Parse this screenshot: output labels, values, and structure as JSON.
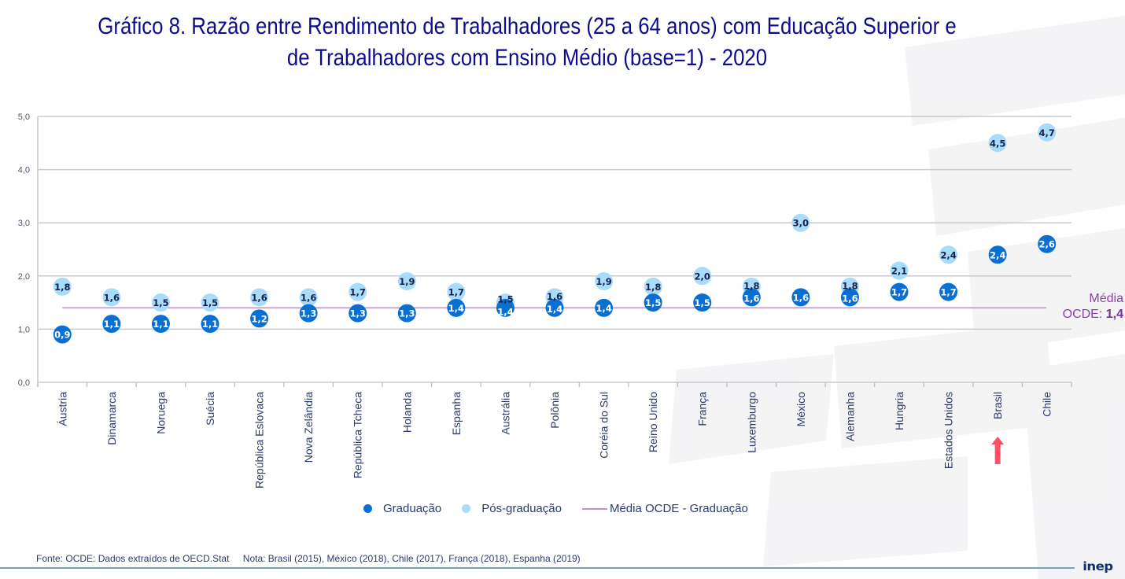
{
  "title": {
    "line1": "Gráfico 8. Razão entre Rendimento de Trabalhadores (25 a 64 anos) com Educação Superior e",
    "line2": "de Trabalhadores com Ensino Médio (base=1) - 2020"
  },
  "colors": {
    "graduacao": "#0a6fd3",
    "pos_graduacao": "#a8dcfb",
    "media_line": "#c48fd6",
    "title": "#0d0d8c",
    "highlight_arrow": "#ff4f64"
  },
  "chart_data": {
    "type": "scatter",
    "title": "Gráfico 8. Razão entre Rendimento de Trabalhadores (25 a 64 anos) com Educação Superior e de Trabalhadores com Ensino Médio (base=1) - 2020",
    "xlabel": "",
    "ylabel": "",
    "ylim": [
      0,
      5
    ],
    "yticks": [
      "0,0",
      "1,0",
      "2,0",
      "3,0",
      "4,0",
      "5,0"
    ],
    "ytick_values": [
      0,
      1,
      2,
      3,
      4,
      5
    ],
    "grid": true,
    "legend_position": "bottom",
    "categories": [
      "Áustria",
      "Dinamarca",
      "Noruega",
      "Suécia",
      "República Eslovaca",
      "Nova Zelândia",
      "República Tcheca",
      "Holanda",
      "Espanha",
      "Austrália",
      "Polônia",
      "Coréia do Sul",
      "Reino Unido",
      "França",
      "Luxemburgo",
      "México",
      "Alemanha",
      "Hungria",
      "Estados Unidos",
      "Brasil",
      "Chile"
    ],
    "series": [
      {
        "name": "Graduação",
        "values": [
          0.9,
          1.1,
          1.1,
          1.1,
          1.2,
          1.3,
          1.3,
          1.3,
          1.4,
          1.4,
          1.4,
          1.4,
          1.5,
          1.5,
          1.6,
          1.6,
          1.6,
          1.7,
          1.7,
          2.4,
          2.6
        ],
        "labels": [
          "0,9",
          "1,1",
          "1,1",
          "1,1",
          "1,2",
          "1,3",
          "1,3",
          "1,3",
          "1,4",
          "1,4",
          "1,4",
          "1,4",
          "1,5",
          "1,5",
          "1,6",
          "1,6",
          "1,6",
          "1,7",
          "1,7",
          "2,4",
          "2,6"
        ]
      },
      {
        "name": "Pós-graduação",
        "values": [
          1.8,
          1.6,
          1.5,
          1.5,
          1.6,
          1.6,
          1.7,
          1.9,
          1.7,
          1.5,
          1.6,
          1.9,
          1.8,
          2.0,
          1.8,
          3.0,
          1.8,
          2.1,
          2.4,
          4.5,
          4.7
        ],
        "labels": [
          "1,8",
          "1,6",
          "1,5",
          "1,5",
          "1,6",
          "1,6",
          "1,7",
          "1,9",
          "1,7",
          "1,5",
          "1,6",
          "1,9",
          "1,8",
          "2,0",
          "1,8",
          "3,0",
          "1,8",
          "2,1",
          "2,4",
          "4,5",
          "4,7"
        ]
      }
    ],
    "reference_line": {
      "name": "Média OCDE - Graduação",
      "value": 1.4
    },
    "annotations": {
      "average_label_line1": "Média",
      "average_label_line2": "OCDE:",
      "average_value": "1,4",
      "highlighted_category": "Brasil"
    }
  },
  "legend": {
    "graduacao": "Graduação",
    "pos_graduacao": "Pós-graduação",
    "media": "Média OCDE - Graduação"
  },
  "footer": {
    "source": "Fonte: OCDE: Dados extraídos de OECD.Stat",
    "note": "Nota: Brasil (2015), México (2018), Chile (2017), França (2018), Espanha (2019)"
  },
  "logo": "inep"
}
